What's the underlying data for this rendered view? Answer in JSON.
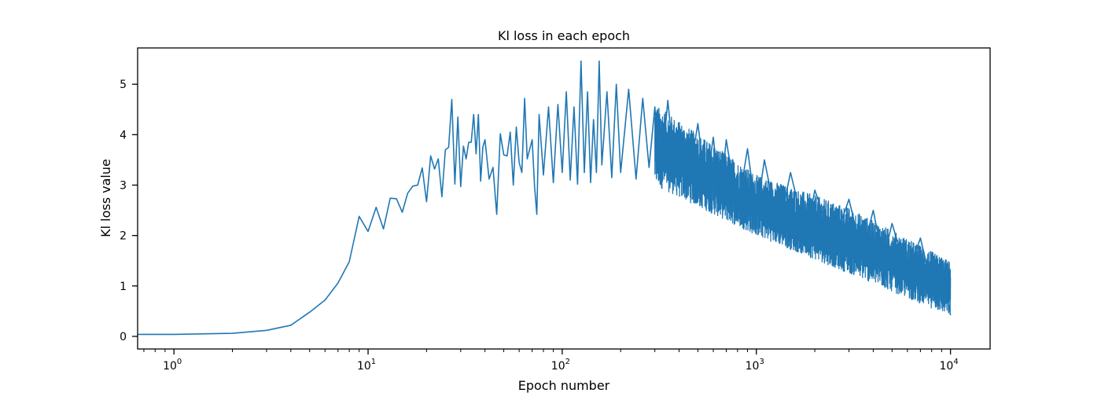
{
  "chart_data": {
    "type": "line",
    "title": "Kl loss in each epoch",
    "xlabel": "Epoch number",
    "ylabel": "Kl loss value",
    "xscale": "log",
    "xlim": [
      0.65,
      16000
    ],
    "ylim": [
      -0.25,
      5.72
    ],
    "grid": false,
    "legend": "none",
    "x_ticks": [
      {
        "value": 1,
        "base": "10",
        "exp": "0"
      },
      {
        "value": 10,
        "base": "10",
        "exp": "1"
      },
      {
        "value": 100,
        "base": "10",
        "exp": "2"
      },
      {
        "value": 1000,
        "base": "10",
        "exp": "3"
      },
      {
        "value": 10000,
        "base": "10",
        "exp": "4"
      }
    ],
    "y_ticks": [
      {
        "value": 0,
        "label": "0"
      },
      {
        "value": 1,
        "label": "1"
      },
      {
        "value": 2,
        "label": "2"
      },
      {
        "value": 3,
        "label": "3"
      },
      {
        "value": 4,
        "label": "4"
      },
      {
        "value": 5,
        "label": "5"
      }
    ],
    "series": [
      {
        "color": "#1f77b4",
        "points": [
          [
            0,
            0.04
          ],
          [
            1,
            0.04
          ],
          [
            2,
            0.06
          ],
          [
            3,
            0.12
          ],
          [
            4,
            0.22
          ],
          [
            5,
            0.48
          ],
          [
            6,
            0.72
          ],
          [
            7,
            1.06
          ],
          [
            8,
            1.48
          ],
          [
            9,
            2.38
          ],
          [
            10,
            2.08
          ],
          [
            11,
            2.56
          ],
          [
            12,
            2.13
          ],
          [
            13,
            2.74
          ],
          [
            14,
            2.73
          ],
          [
            15,
            2.46
          ],
          [
            16,
            2.84
          ],
          [
            17,
            2.98
          ],
          [
            18,
            3.0
          ],
          [
            19,
            3.34
          ],
          [
            20,
            2.67
          ],
          [
            21,
            3.58
          ],
          [
            22,
            3.32
          ],
          [
            23,
            3.52
          ],
          [
            24,
            2.77
          ],
          [
            25,
            3.7
          ],
          [
            26,
            3.75
          ],
          [
            27,
            4.7
          ],
          [
            28,
            3.02
          ],
          [
            29,
            4.35
          ],
          [
            30,
            2.97
          ],
          [
            31,
            3.77
          ],
          [
            32,
            3.52
          ],
          [
            33,
            3.85
          ],
          [
            34,
            3.85
          ],
          [
            35,
            4.4
          ],
          [
            36,
            3.62
          ],
          [
            37,
            4.4
          ],
          [
            38,
            3.08
          ],
          [
            39,
            3.75
          ],
          [
            40,
            3.9
          ],
          [
            42,
            3.12
          ],
          [
            44,
            3.35
          ],
          [
            46,
            2.42
          ],
          [
            48,
            4.02
          ],
          [
            50,
            3.6
          ],
          [
            52,
            3.58
          ],
          [
            54,
            4.05
          ],
          [
            56,
            3.0
          ],
          [
            58,
            4.15
          ],
          [
            60,
            3.45
          ],
          [
            62,
            3.25
          ],
          [
            64,
            4.72
          ],
          [
            66,
            3.52
          ],
          [
            70,
            3.9
          ],
          [
            72,
            2.98
          ],
          [
            74,
            2.42
          ],
          [
            76,
            4.4
          ],
          [
            80,
            3.2
          ],
          [
            85,
            4.55
          ],
          [
            90,
            3.05
          ],
          [
            95,
            4.6
          ],
          [
            100,
            3.25
          ],
          [
            105,
            4.85
          ],
          [
            110,
            3.1
          ],
          [
            115,
            4.55
          ],
          [
            120,
            3.02
          ],
          [
            125,
            5.46
          ],
          [
            130,
            3.25
          ],
          [
            135,
            4.85
          ],
          [
            140,
            3.05
          ],
          [
            145,
            4.3
          ],
          [
            150,
            3.25
          ],
          [
            155,
            5.46
          ],
          [
            160,
            3.4
          ],
          [
            170,
            4.85
          ],
          [
            180,
            3.15
          ],
          [
            190,
            5.0
          ],
          [
            200,
            3.25
          ],
          [
            220,
            4.9
          ],
          [
            240,
            3.12
          ],
          [
            260,
            4.72
          ],
          [
            280,
            3.35
          ],
          [
            300,
            4.55
          ],
          [
            320,
            3.02
          ],
          [
            350,
            4.68
          ],
          [
            380,
            3.25
          ],
          [
            400,
            4.2
          ],
          [
            450,
            3.15
          ],
          [
            500,
            4.22
          ],
          [
            550,
            2.92
          ],
          [
            600,
            3.95
          ],
          [
            650,
            2.72
          ],
          [
            700,
            3.9
          ],
          [
            800,
            2.5
          ],
          [
            900,
            3.72
          ],
          [
            1000,
            2.4
          ],
          [
            1100,
            3.5
          ],
          [
            1300,
            2.1
          ],
          [
            1500,
            3.25
          ],
          [
            1800,
            1.98
          ],
          [
            2000,
            2.9
          ],
          [
            2500,
            1.82
          ],
          [
            3000,
            2.72
          ],
          [
            3500,
            1.62
          ],
          [
            4000,
            2.5
          ],
          [
            4500,
            1.5
          ],
          [
            5000,
            2.24
          ],
          [
            6000,
            1.22
          ],
          [
            7000,
            1.95
          ],
          [
            8000,
            1.0
          ],
          [
            9000,
            1.55
          ],
          [
            10000,
            0.42
          ]
        ]
      }
    ],
    "noise_band": {
      "x_start": 300,
      "x_end": 10000,
      "upper": [
        [
          300,
          4.6
        ],
        [
          1000,
          3.2
        ],
        [
          3000,
          2.55
        ],
        [
          10000,
          1.48
        ]
      ],
      "lower": [
        [
          300,
          3.0
        ],
        [
          1000,
          2.0
        ],
        [
          3000,
          1.25
        ],
        [
          10000,
          0.4
        ]
      ]
    }
  }
}
